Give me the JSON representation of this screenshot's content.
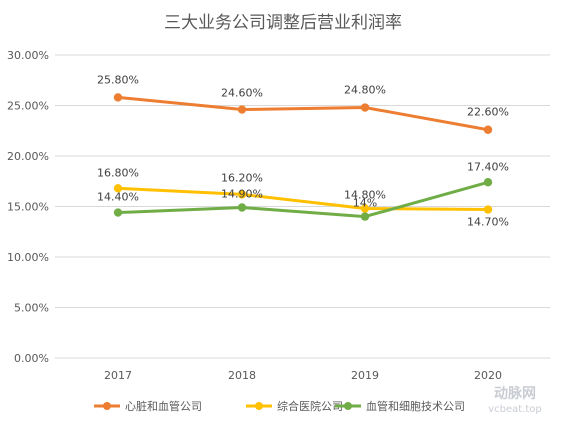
{
  "chart_data": {
    "type": "line",
    "title": "三大业务公司调整后营业利润率",
    "categories": [
      "2017",
      "2018",
      "2019",
      "2020"
    ],
    "ylim": [
      0,
      30
    ],
    "yticks": [
      0,
      5,
      10,
      15,
      20,
      25,
      30
    ],
    "ytick_labels": [
      "0.00%",
      "5.00%",
      "10.00%",
      "15.00%",
      "20.00%",
      "25.00%",
      "30.00%"
    ],
    "grid": true,
    "legend_position": "bottom",
    "series": [
      {
        "name": "心脏和血管公司",
        "color": "#ED7D31",
        "values": [
          25.8,
          24.6,
          24.8,
          22.6
        ],
        "labels": [
          "25.80%",
          "24.60%",
          "24.80%",
          "22.60%"
        ]
      },
      {
        "name": "综合医院公司",
        "color": "#FFC000",
        "values": [
          16.8,
          16.2,
          14.8,
          14.7
        ],
        "labels": [
          "16.80%",
          "16.20%",
          "14.80%",
          "14.70%"
        ]
      },
      {
        "name": "血管和细胞技术公司",
        "color": "#70AD47",
        "values": [
          14.4,
          14.9,
          14.0,
          17.4
        ],
        "labels": [
          "14.40%",
          "14.90%",
          "14%",
          "17.40%"
        ]
      }
    ]
  },
  "watermark": {
    "brand": "动脉网",
    "site": "vcbeat.top"
  }
}
